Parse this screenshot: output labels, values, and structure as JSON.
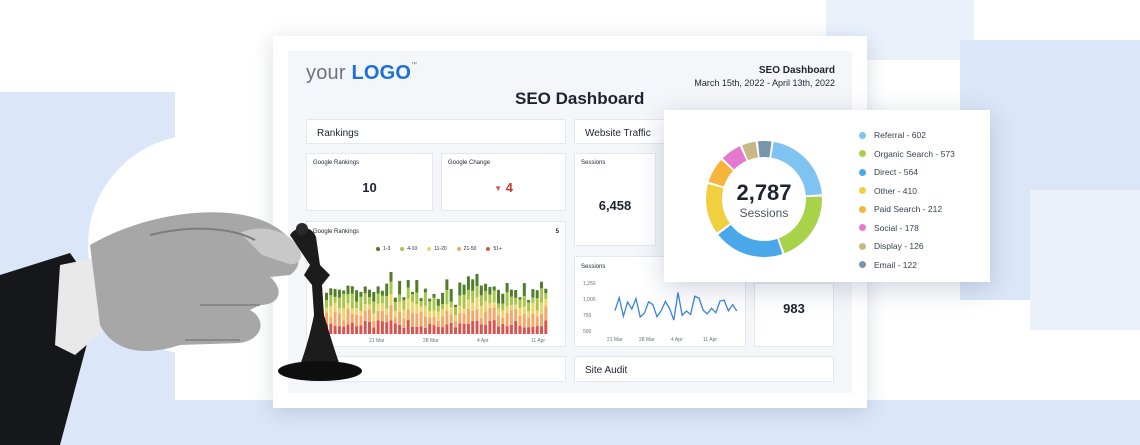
{
  "header": {
    "logo_text": "your",
    "logo_bold": "LOGO",
    "logo_tm": "™",
    "report_title": "SEO Dashboard",
    "date_range": "March 15th, 2022 - April 13th, 2022",
    "page_title": "SEO Dashboard"
  },
  "rankings": {
    "section_title": "Rankings",
    "google_rankings_label": "Google Rankings",
    "google_rankings_value": "10",
    "google_change_label": "Google Change",
    "google_change_value": "4",
    "chart_title": "Google Rankings",
    "chart_badge": "5",
    "legend": [
      "1-3",
      "4-10",
      "11-20",
      "21-50",
      "51+"
    ],
    "legend_colors": [
      "#4f7d2a",
      "#a8c64a",
      "#f0d46a",
      "#f3a86a",
      "#d9534f"
    ],
    "x_ticks": [
      "21 Mar",
      "28 Mar",
      "4 Apr",
      "11 Apr"
    ]
  },
  "website_traffic": {
    "section_title": "Website Traffic",
    "sessions_label": "Sessions",
    "sessions_value": "6,458",
    "sessions_chart_label": "Sessions",
    "y_ticks": [
      "1,250",
      "1,000",
      "750",
      "500"
    ],
    "x_ticks": [
      "21 Mar",
      "28 Mar",
      "4 Apr",
      "11 Apr"
    ],
    "side_value": "983"
  },
  "site_audit": {
    "section_title": "Site Audit"
  },
  "donut": {
    "center_value": "2,787",
    "center_label": "Sessions",
    "items": [
      {
        "label": "Referral - 602",
        "color": "#7ec3f2"
      },
      {
        "label": "Organic Search - 573",
        "color": "#a8d24a"
      },
      {
        "label": "Direct - 564",
        "color": "#4aa8e8"
      },
      {
        "label": "Other - 410",
        "color": "#f0d040"
      },
      {
        "label": "Paid Search - 212",
        "color": "#f6b43c"
      },
      {
        "label": "Social - 178",
        "color": "#e47ad0"
      },
      {
        "label": "Display - 126",
        "color": "#c9b883"
      },
      {
        "label": "Email - 122",
        "color": "#7896ab"
      }
    ]
  },
  "chart_data": {
    "type": "pie",
    "categories": [
      "Referral",
      "Organic Search",
      "Direct",
      "Other",
      "Paid Search",
      "Social",
      "Display",
      "Email"
    ],
    "values": [
      602,
      573,
      564,
      410,
      212,
      178,
      126,
      122
    ],
    "title": "",
    "legend": "right"
  }
}
